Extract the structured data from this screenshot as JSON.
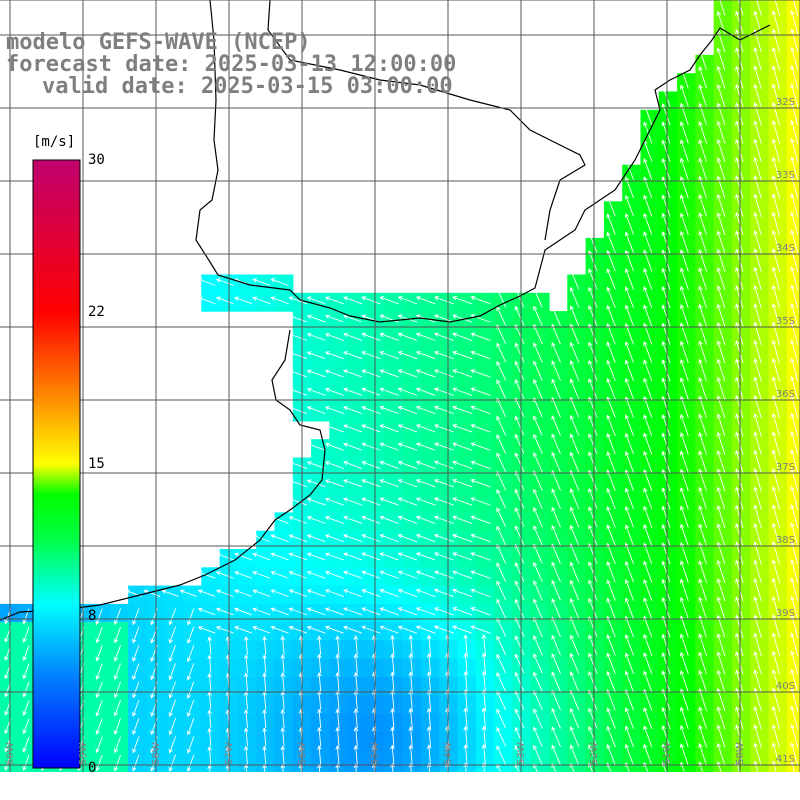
{
  "title": {
    "line1": "modelo GEFS-WAVE (NCEP)",
    "line2": "forecast date: 2025-03-13 12:00:00",
    "line3": "valid date: 2025-03-15 03:00:00"
  },
  "colorbar": {
    "unit": "[m/s]",
    "ticks": [
      "30",
      "22",
      "15",
      "8",
      "0"
    ],
    "colors": [
      "#0000ff",
      "#0090ff",
      "#00ffff",
      "#00ff00",
      "#ffff00",
      "#ff8000",
      "#ff0000",
      "#c0006f"
    ]
  },
  "map": {
    "longitude_labels": [
      "60W",
      "59W",
      "58W",
      "57W",
      "56W",
      "55W",
      "54W",
      "53W",
      "52W",
      "51W",
      "50W"
    ],
    "latitude_labels": [
      "32S",
      "33S",
      "34S",
      "35S",
      "36S",
      "37S",
      "38S",
      "39S",
      "40S",
      "41S"
    ]
  }
}
